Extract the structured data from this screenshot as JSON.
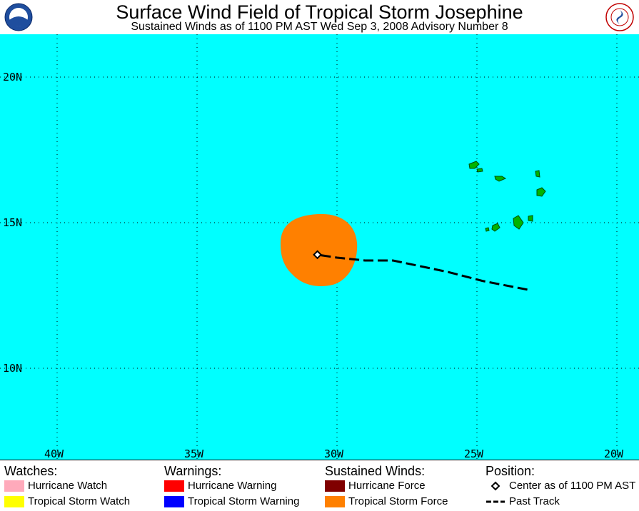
{
  "header": {
    "title": "Surface Wind Field of Tropical Storm Josephine",
    "subtitle": "Sustained Winds as of 1100 PM AST Wed Sep 3, 2008    Advisory Number 8"
  },
  "map": {
    "lat_labels": [
      {
        "lat": 20,
        "label": "20N"
      },
      {
        "lat": 15,
        "label": "15N"
      },
      {
        "lat": 10,
        "label": "10N"
      }
    ],
    "lon_labels": [
      {
        "lon": -40,
        "label": "40W"
      },
      {
        "lon": -35,
        "label": "35W"
      },
      {
        "lon": -30,
        "label": "30W"
      },
      {
        "lon": -25,
        "label": "25W"
      },
      {
        "lon": -20,
        "label": "20W"
      }
    ],
    "colors": {
      "ocean": "#00ffff",
      "land": "#00b400",
      "tropical_storm_force": "#ff8000",
      "track": "#000000"
    },
    "center": {
      "lat": 13.9,
      "lon": -30.7
    },
    "past_track": [
      {
        "lat": 12.7,
        "lon": -23.2
      },
      {
        "lat": 13.0,
        "lon": -24.8
      },
      {
        "lat": 13.3,
        "lon": -26.0
      },
      {
        "lat": 13.5,
        "lon": -27.0
      },
      {
        "lat": 13.7,
        "lon": -28.0
      },
      {
        "lat": 13.7,
        "lon": -29.0
      },
      {
        "lat": 13.8,
        "lon": -30.0
      },
      {
        "lat": 13.9,
        "lon": -30.7
      }
    ],
    "islands_icon": "cape-verde-islands"
  },
  "legend": {
    "watches": {
      "title": "Watches:",
      "items": [
        {
          "label": "Hurricane Watch",
          "color": "#ffaabb"
        },
        {
          "label": "Tropical Storm Watch",
          "color": "#ffff00"
        }
      ]
    },
    "warnings": {
      "title": "Warnings:",
      "items": [
        {
          "label": "Hurricane Warning",
          "color": "#ff0000"
        },
        {
          "label": "Tropical Storm Warning",
          "color": "#0000ff"
        }
      ]
    },
    "winds": {
      "title": "Sustained Winds:",
      "items": [
        {
          "label": "Hurricane Force",
          "color": "#800000"
        },
        {
          "label": "Tropical Storm Force",
          "color": "#ff8000"
        }
      ]
    },
    "position": {
      "title": "Position:",
      "items": [
        {
          "label": "Center as of 1100 PM AST",
          "icon": "diamond-icon"
        },
        {
          "label": "Past Track",
          "icon": "dashed-line-icon"
        }
      ]
    }
  }
}
